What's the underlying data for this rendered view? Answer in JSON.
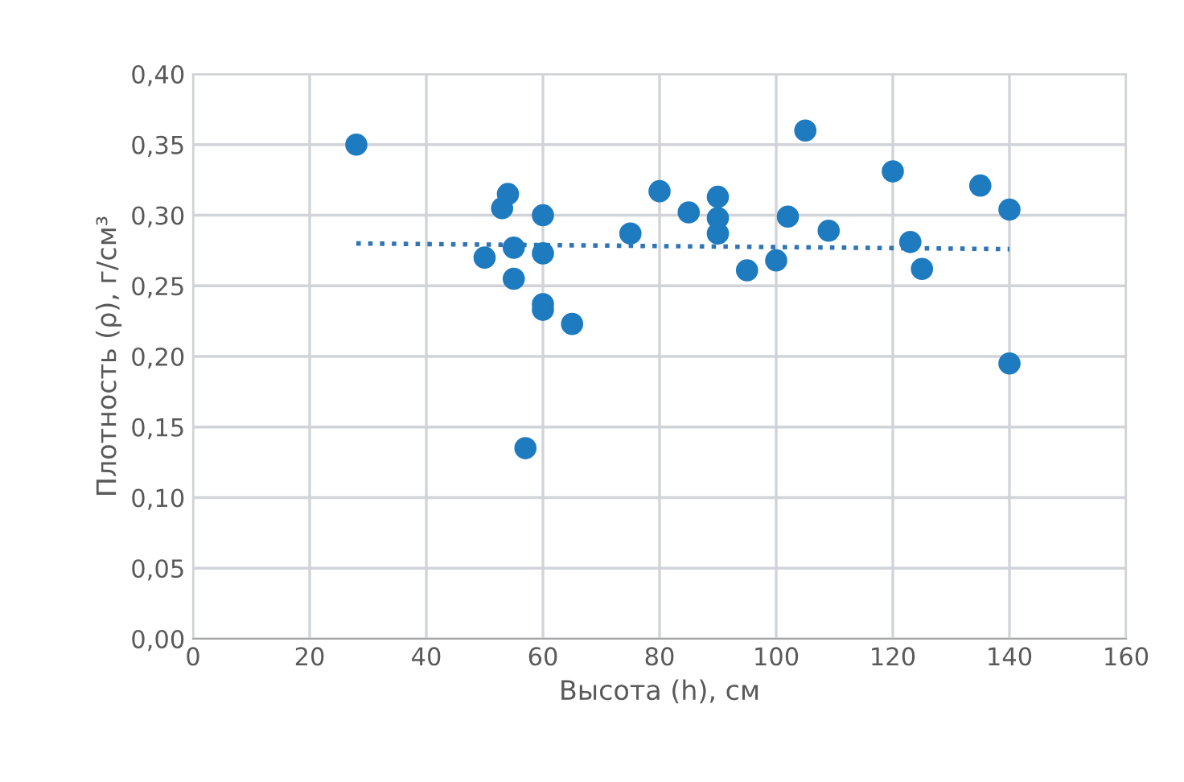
{
  "chart_data": {
    "type": "scatter",
    "xlabel": "Высота (h), см",
    "ylabel": "Плотность (ρ), г/см³",
    "x": [
      28,
      50,
      53,
      54,
      55,
      55,
      57,
      60,
      60,
      60,
      60,
      65,
      75,
      80,
      85,
      90,
      90,
      90,
      95,
      100,
      102,
      105,
      109,
      120,
      123,
      125,
      135,
      140,
      140
    ],
    "series": [
      {
        "color": "#1f7bbf",
        "marker": "circle",
        "values": [
          0.35,
          0.27,
          0.305,
          0.315,
          0.277,
          0.255,
          0.135,
          0.3,
          0.273,
          0.237,
          0.233,
          0.223,
          0.287,
          0.317,
          0.302,
          0.313,
          0.298,
          0.287,
          0.261,
          0.268,
          0.299,
          0.36,
          0.289,
          0.331,
          0.281,
          0.262,
          0.321,
          0.304,
          0.195
        ]
      },
      {
        "type": "line",
        "color": "#2f75b5",
        "line_style": "dotted",
        "marker": "none",
        "x": [
          28,
          140
        ],
        "values": [
          0.28,
          0.276
        ]
      }
    ],
    "xlim": [
      0,
      160
    ],
    "xticks": [
      0,
      20,
      40,
      60,
      80,
      100,
      120,
      140,
      160
    ],
    "ylim": [
      0,
      0.4
    ],
    "yticks": [
      {
        "value": 0,
        "label": "0,00"
      },
      {
        "value": 0.05,
        "label": "0,05"
      },
      {
        "value": 0.1,
        "label": "0,10"
      },
      {
        "value": 0.15,
        "label": "0,15"
      },
      {
        "value": 0.2,
        "label": "0,20"
      },
      {
        "value": 0.25,
        "label": "0,25"
      },
      {
        "value": 0.3,
        "label": "0,30"
      },
      {
        "value": 0.35,
        "label": "0,35"
      },
      {
        "value": 0.4,
        "label": "0,40"
      }
    ],
    "grid": true,
    "legend": false
  }
}
